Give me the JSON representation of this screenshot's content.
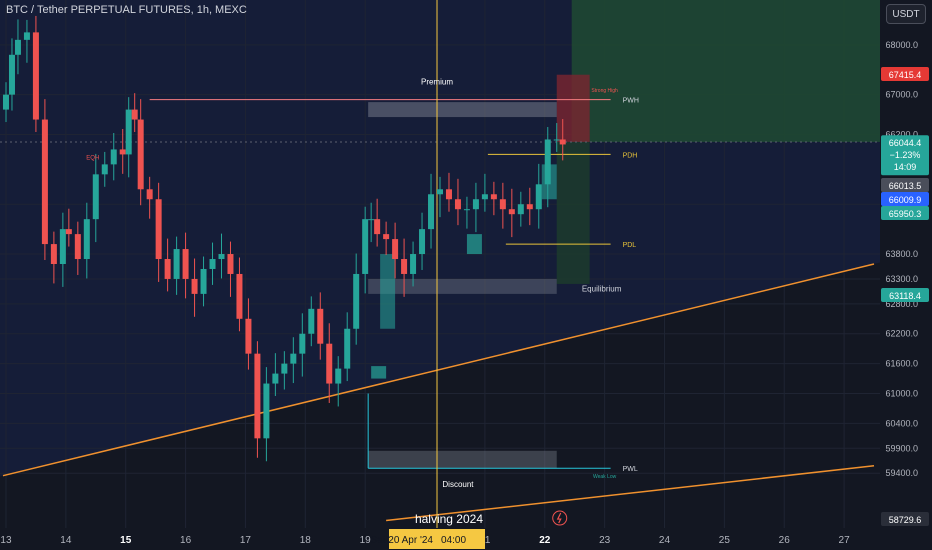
{
  "header": {
    "title": "BTC / Tether PERPETUAL FUTURES, 1h, MEXC",
    "currency": "USDT"
  },
  "colors": {
    "background": "#131722",
    "premium_bg": "#151d38",
    "bull": "#26a69a",
    "bear": "#ef5350",
    "trendline": "#f0912e",
    "halving_line": "#f5c842",
    "pwh_line": "#f77c80",
    "level_line": "#e8c33a",
    "tp_zone": "#1f4a33",
    "sl_zone": "#7a2530"
  },
  "annotations": {
    "premium": "Premium",
    "equilibrium": "Equilibrium",
    "discount": "Discount",
    "pwh": "PWH",
    "pdh": "PDH",
    "pdl": "PDL",
    "pwl": "PWL",
    "eqh": "EQH",
    "strong_high": "Strong High",
    "weak_low": "Weak Low",
    "halving": "halving 2024"
  },
  "price_badges": {
    "sl": "67415.4",
    "last": "66044.4",
    "change": "−1.23%",
    "countdown": "14:09",
    "p1": "66013.5",
    "p2": "66009.9",
    "p3": "65950.3",
    "p4": "63118.4",
    "p5": "58729.6"
  },
  "crosshair": {
    "date_label": "Sat 20 Apr '24",
    "time_label": "04:00"
  },
  "chart_data": {
    "type": "candlestick",
    "title": "BTC / Tether PERPETUAL FUTURES, 1h, MEXC",
    "y_ticks": [
      "68000.0",
      "67000.0",
      "66200.0",
      "64800.0",
      "63800.0",
      "63300.0",
      "62800.0",
      "62200.0",
      "61600.0",
      "61000.0",
      "60400.0",
      "59900.0",
      "59400.0"
    ],
    "x_ticks": [
      "13",
      "14",
      "15",
      "16",
      "17",
      "18",
      "19",
      "Sat 20 Apr '24",
      "21",
      "22",
      "23",
      "24",
      "25",
      "26",
      "27"
    ],
    "x_ticks_bold": [
      "15",
      "22"
    ],
    "series": [
      {
        "x_days": [
          13.0,
          13.1,
          13.2,
          13.35,
          13.5,
          13.65,
          13.8,
          13.95,
          14.05,
          14.2,
          14.35,
          14.5,
          14.65,
          14.8,
          14.95,
          15.05,
          15.15,
          15.25,
          15.4,
          15.55,
          15.7,
          15.85,
          16.0,
          16.15,
          16.3,
          16.45,
          16.6,
          16.75,
          16.9,
          17.05,
          17.2,
          17.35,
          17.5,
          17.65,
          17.8,
          17.95,
          18.1,
          18.25,
          18.4,
          18.55,
          18.7,
          18.85,
          19.0,
          19.1,
          19.2,
          19.35,
          19.5,
          19.65,
          19.8,
          19.95,
          20.1,
          20.25,
          20.4,
          20.55,
          20.7,
          20.85,
          21.0,
          21.15,
          21.3,
          21.45,
          21.6,
          21.75,
          21.9,
          22.05,
          22.2,
          22.3
        ],
        "close": [
          67000,
          67800,
          68100,
          68250,
          66500,
          64000,
          63600,
          64300,
          64200,
          63700,
          64500,
          65400,
          65600,
          65900,
          65800,
          66700,
          66500,
          65100,
          64900,
          63700,
          63300,
          63900,
          63300,
          63000,
          63500,
          63700,
          63800,
          63400,
          62500,
          61800,
          60100,
          61200,
          61400,
          61600,
          61800,
          62200,
          62700,
          62000,
          61200,
          61500,
          62300,
          63400,
          64500,
          64500,
          64200,
          64100,
          63700,
          63400,
          63800,
          64300,
          65000,
          65100,
          64900,
          64700,
          64700,
          64900,
          65000,
          64900,
          64700,
          64600,
          64800,
          64700,
          65200,
          66100,
          66100,
          66000
        ]
      }
    ],
    "levels": {
      "PWH": 66900,
      "PDH": 65800,
      "PDL": 64000,
      "PWL": 59500,
      "Equilibrium": 63200,
      "entry": 66050,
      "stop": 67400,
      "target": 69000
    },
    "trendlines": [
      {
        "name": "lower",
        "from": [
          12.95,
          59350
        ],
        "to": [
          27.5,
          63600
        ]
      },
      {
        "name": "bottom",
        "from": [
          19.35,
          58450
        ],
        "to": [
          27.5,
          59550
        ]
      }
    ],
    "vertical_marker": {
      "label": "halving 2024",
      "x_day": 20.2
    },
    "ylim": [
      58300,
      68900
    ],
    "xlim": [
      12.9,
      27.6
    ]
  }
}
